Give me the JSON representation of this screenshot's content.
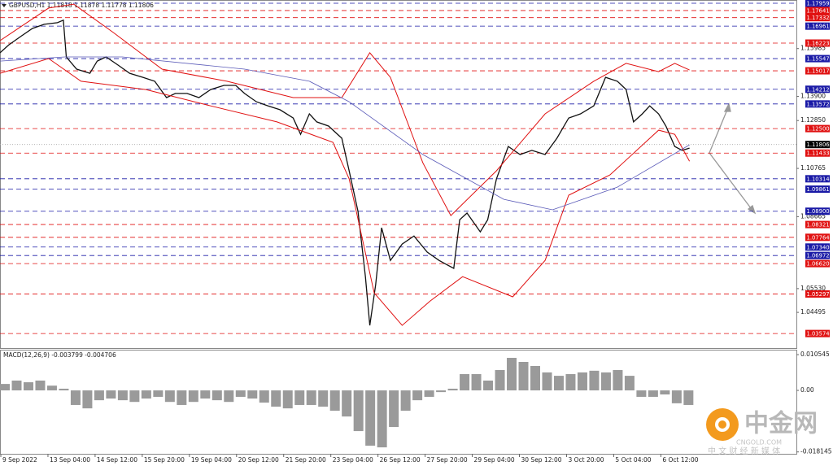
{
  "chart_data": [
    {
      "type": "line",
      "title": "GBPUSD,H1  1.11818 1.11878 1.11778 1.11806",
      "xlim": [
        0,
        540
      ],
      "ylim": [
        1.0294,
        1.181
      ],
      "xticks": [
        {
          "value": 0,
          "label": "9 Sep 2022"
        },
        {
          "value": 32,
          "label": "13 Sep 04:00"
        },
        {
          "value": 64,
          "label": "14 Sep 12:00"
        },
        {
          "value": 96,
          "label": "15 Sep 20:00"
        },
        {
          "value": 128,
          "label": "19 Sep 04:00"
        },
        {
          "value": 160,
          "label": "20 Sep 12:00"
        },
        {
          "value": 192,
          "label": "21 Sep 20:00"
        },
        {
          "value": 224,
          "label": "23 Sep 04:00"
        },
        {
          "value": 256,
          "label": "26 Sep 12:00"
        },
        {
          "value": 288,
          "label": "27 Sep 20:00"
        },
        {
          "value": 320,
          "label": "29 Sep 04:00"
        },
        {
          "value": 352,
          "label": "30 Sep 12:00"
        },
        {
          "value": 384,
          "label": "3 Oct 20:00"
        },
        {
          "value": 416,
          "label": "5 Oct 04:00"
        },
        {
          "value": 448,
          "label": "6 Oct 12:00"
        }
      ],
      "yticks": [
        1.15985,
        {
          "value": 1.139,
          "label": "1.13900"
        },
        {
          "value": 1.1285,
          "label": "1.12850"
        },
        1.10765,
        1.08665,
        {
          "value": 1.0553,
          "label": "1.05530"
        },
        1.04495
      ],
      "levels": [
        {
          "value": 1.17959,
          "color": "#1a1aa6"
        },
        {
          "value": 1.17641,
          "color": "#e01010"
        },
        {
          "value": 1.17332,
          "color": "#e01010"
        },
        {
          "value": 1.16961,
          "color": "#1a1aa6"
        },
        {
          "value": 1.16223,
          "color": "#e01010"
        },
        {
          "value": 1.15547,
          "color": "#1a1aa6"
        },
        {
          "value": 1.15017,
          "color": "#e01010"
        },
        {
          "value": 1.14212,
          "color": "#1a1aa6"
        },
        {
          "value": 1.13572,
          "color": "#1a1aa6"
        },
        {
          "value": 1.125,
          "label": "1.12500",
          "color": "#e01010"
        },
        {
          "value": 1.11806,
          "color": "#000000",
          "line": "dotted"
        },
        {
          "value": 1.11433,
          "color": "#e01010"
        },
        {
          "value": 1.10314,
          "color": "#1a1aa6"
        },
        {
          "value": 1.09861,
          "color": "#1a1aa6"
        },
        {
          "value": 1.089,
          "label": "1.08900",
          "color": "#1a1aa6"
        },
        {
          "value": 1.08321,
          "color": "#e01010"
        },
        {
          "value": 1.07764,
          "color": "#e01010"
        },
        {
          "value": 1.0734,
          "label": "1.07340",
          "color": "#1a1aa6"
        },
        {
          "value": 1.06972,
          "color": "#1a1aa6"
        },
        {
          "value": 1.0662,
          "label": "1.06620",
          "color": "#e01010"
        },
        {
          "value": 1.05297,
          "color": "#e01010"
        },
        {
          "value": 1.03574,
          "color": "#e01010"
        }
      ],
      "series": [
        {
          "name": "GBPUSD",
          "color": "#111111",
          "width": 1.3,
          "x": [
            0,
            6,
            14,
            22,
            30,
            39,
            43,
            45,
            52,
            61,
            66,
            72,
            80,
            88,
            97,
            105,
            113,
            119,
            127,
            135,
            143,
            152,
            160,
            166,
            174,
            182,
            190,
            199,
            204,
            210,
            215,
            223,
            232,
            237,
            243,
            248,
            251,
            255,
            259,
            265,
            273,
            281,
            290,
            298,
            303,
            308,
            312,
            317,
            326,
            331,
            337,
            345,
            353,
            361,
            370,
            378,
            386,
            394,
            403,
            411,
            419,
            425,
            430,
            436,
            441,
            447,
            452,
            458,
            463,
            468
          ],
          "values": [
            1.158,
            1.1615,
            1.1651,
            1.1686,
            1.1704,
            1.1711,
            1.1722,
            1.1562,
            1.1509,
            1.1491,
            1.1544,
            1.1562,
            1.1527,
            1.1491,
            1.1473,
            1.1456,
            1.1385,
            1.1403,
            1.1403,
            1.1385,
            1.142,
            1.1438,
            1.1438,
            1.1403,
            1.1367,
            1.1349,
            1.1332,
            1.1296,
            1.1225,
            1.1314,
            1.1279,
            1.1261,
            1.1208,
            1.1066,
            1.0889,
            1.0605,
            1.0393,
            1.057,
            1.0818,
            1.0676,
            1.0747,
            1.0782,
            1.0712,
            1.0676,
            1.0658,
            1.0641,
            1.0853,
            1.0882,
            1.08,
            1.0853,
            1.1031,
            1.1172,
            1.1137,
            1.1155,
            1.1137,
            1.1208,
            1.1296,
            1.1314,
            1.1349,
            1.1473,
            1.1456,
            1.142,
            1.1279,
            1.1314,
            1.1349,
            1.1314,
            1.1261,
            1.1172,
            1.1155,
            1.1165
          ]
        },
        {
          "name": "BB upper",
          "color": "#e01010",
          "width": 1,
          "x": [
            0,
            33,
            50,
            77,
            110,
            154,
            199,
            232,
            251,
            265,
            287,
            306,
            337,
            370,
            403,
            425,
            447,
            458,
            468
          ],
          "values": [
            1.1633,
            1.1775,
            1.1792,
            1.1668,
            1.1509,
            1.1456,
            1.1385,
            1.1385,
            1.158,
            1.1473,
            1.1101,
            1.0871,
            1.1066,
            1.1314,
            1.1456,
            1.1534,
            1.1498,
            1.1534,
            1.1505
          ]
        },
        {
          "name": "BB lower",
          "color": "#e01010",
          "width": 1,
          "x": [
            0,
            33,
            55,
            99,
            143,
            188,
            226,
            237,
            254,
            273,
            292,
            314,
            348,
            370,
            386,
            414,
            447,
            458,
            468
          ],
          "values": [
            1.1491,
            1.1555,
            1.1456,
            1.142,
            1.1349,
            1.1279,
            1.119,
            1.1031,
            1.0534,
            1.0393,
            1.0499,
            1.0605,
            1.0517,
            1.0676,
            1.096,
            1.1048,
            1.1243,
            1.1225,
            1.1108
          ]
        },
        {
          "name": "MA",
          "color": "#5a5ab8",
          "width": 0.8,
          "x": [
            0,
            44,
            83,
            166,
            210,
            237,
            287,
            342,
            375,
            419,
            468
          ],
          "values": [
            1.1544,
            1.1562,
            1.1562,
            1.1509,
            1.1456,
            1.1367,
            1.1137,
            1.0942,
            1.0896,
            1.0995,
            1.1179
          ]
        }
      ]
    },
    {
      "type": "bar",
      "title": "MACD(12,26,9) -0.003799 -0.004706",
      "xlim": [
        0,
        540
      ],
      "ylim": [
        -0.0187,
        0.012
      ],
      "yticks": [
        0.010545,
        {
          "value": 0,
          "label": "0.00"
        },
        -0.018145
      ],
      "color": "#9a9a9a",
      "x": [
        0,
        8,
        16,
        24,
        32,
        40,
        48,
        56,
        64,
        72,
        80,
        88,
        96,
        104,
        112,
        120,
        128,
        136,
        144,
        152,
        160,
        168,
        176,
        184,
        192,
        200,
        208,
        216,
        224,
        232,
        240,
        248,
        256,
        264,
        272,
        280,
        288,
        296,
        304,
        312,
        320,
        328,
        336,
        344,
        352,
        360,
        368,
        376,
        384,
        392,
        400,
        408,
        416,
        424,
        432,
        440,
        448,
        456,
        464
      ],
      "values": [
        0.0019,
        0.0029,
        0.0024,
        0.0029,
        0.0014,
        0.0005,
        -0.0043,
        -0.0053,
        -0.0029,
        -0.0024,
        -0.0029,
        -0.0034,
        -0.0024,
        -0.0019,
        -0.0034,
        -0.0043,
        -0.0034,
        -0.0024,
        -0.0029,
        -0.0034,
        -0.0019,
        -0.0024,
        -0.0036,
        -0.0048,
        -0.0053,
        -0.0043,
        -0.0043,
        -0.0048,
        -0.006,
        -0.0077,
        -0.012,
        -0.0163,
        -0.0168,
        -0.0108,
        -0.006,
        -0.0029,
        -0.0019,
        -0.0005,
        0.0005,
        0.0048,
        0.0048,
        0.0029,
        0.006,
        0.0096,
        0.0084,
        0.0072,
        0.0053,
        0.0043,
        0.0048,
        0.0053,
        0.0058,
        0.0053,
        0.006,
        0.0043,
        -0.0019,
        -0.0019,
        -0.0012,
        -0.0038,
        -0.0043
      ]
    }
  ],
  "watermark": {
    "logo": "中金网",
    "site": "CNGOLD.COM",
    "slogan": "中 文 财 经 新 媒 体"
  }
}
